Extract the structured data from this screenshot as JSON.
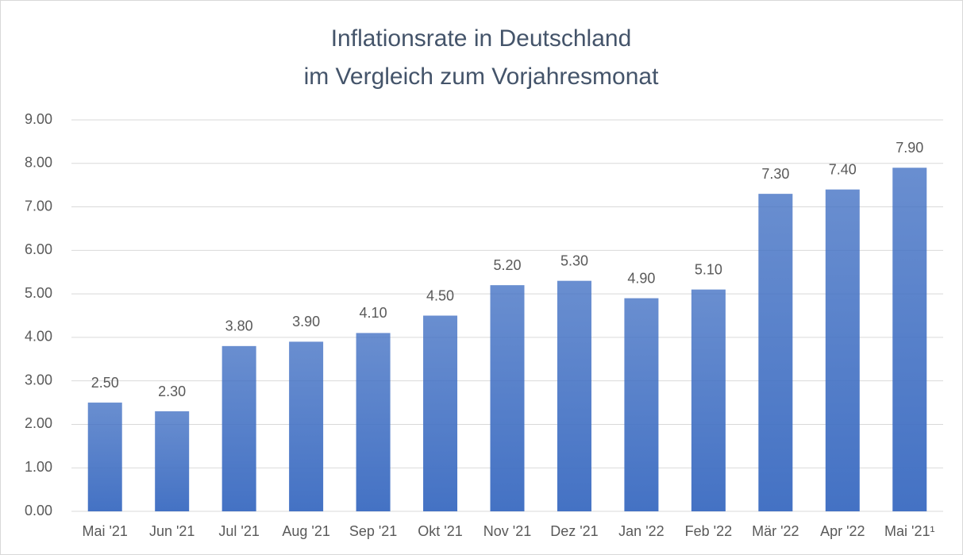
{
  "chart_data": {
    "type": "bar",
    "title": [
      "Inflationsrate in Deutschland",
      "im Vergleich zum Vorjahresmonat"
    ],
    "categories": [
      "Mai '21",
      "Jun '21",
      "Jul '21",
      "Aug '21",
      "Sep '21",
      "Okt '21",
      "Nov '21",
      "Dez '21",
      "Jan '22",
      "Feb '22",
      "Mär '22",
      "Apr '22",
      "Mai '21¹"
    ],
    "values": [
      2.5,
      2.3,
      3.8,
      3.9,
      4.1,
      4.5,
      5.2,
      5.3,
      4.9,
      5.1,
      7.3,
      7.4,
      7.9
    ],
    "value_labels": [
      "2.50",
      "2.30",
      "3.80",
      "3.90",
      "4.10",
      "4.50",
      "5.20",
      "5.30",
      "4.90",
      "5.10",
      "7.30",
      "7.40",
      "7.90"
    ],
    "color": "#4472c4",
    "ylim": [
      0,
      9
    ],
    "yticks": [
      {
        "value": 0,
        "label": "0.00"
      },
      {
        "value": 1,
        "label": "1.00"
      },
      {
        "value": 2,
        "label": "2.00"
      },
      {
        "value": 3,
        "label": "3.00"
      },
      {
        "value": 4,
        "label": "4.00"
      },
      {
        "value": 5,
        "label": "5.00"
      },
      {
        "value": 6,
        "label": "6.00"
      },
      {
        "value": 7,
        "label": "7.00"
      },
      {
        "value": 8,
        "label": "8.00"
      },
      {
        "value": 9,
        "label": "9.00"
      }
    ],
    "grid": true
  }
}
